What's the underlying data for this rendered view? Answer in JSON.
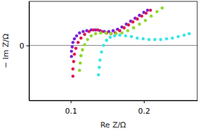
{
  "chart_data": {
    "type": "scatter",
    "x_label": "Re Z/Ω",
    "y_label": "− Im Z/Ω",
    "xlim": [
      0.043,
      0.273
    ],
    "ylim": [
      -0.075,
      0.06
    ],
    "xticks": [
      0.1,
      0.2
    ],
    "yticks": [
      0
    ],
    "grid": "y",
    "marker": "circle",
    "series": [
      {
        "color": "#7b22d8",
        "x": [
          0.101,
          0.101,
          0.102,
          0.103,
          0.105,
          0.108,
          0.112,
          0.117,
          0.122,
          0.128,
          0.134,
          0.14,
          0.146,
          0.152,
          0.158,
          0.164,
          0.17,
          0.176,
          0.182,
          0.188,
          0.194,
          0.2,
          0.205
        ],
        "values": [
          -0.015,
          -0.008,
          -0.002,
          0.004,
          0.009,
          0.013,
          0.017,
          0.019,
          0.02,
          0.021,
          0.021,
          0.02,
          0.019,
          0.019,
          0.02,
          0.022,
          0.025,
          0.029,
          0.033,
          0.037,
          0.041,
          0.045,
          0.048
        ]
      },
      {
        "color": "#e0184c",
        "x": [
          0.103,
          0.103,
          0.104,
          0.105,
          0.107,
          0.11,
          0.114,
          0.119,
          0.125,
          0.131,
          0.137,
          0.143,
          0.149,
          0.155,
          0.161,
          0.167,
          0.173,
          0.179,
          0.185,
          0.191,
          0.197,
          0.203,
          0.209
        ],
        "values": [
          -0.042,
          -0.032,
          -0.022,
          -0.012,
          -0.004,
          0.004,
          0.01,
          0.015,
          0.019,
          0.021,
          0.021,
          0.019,
          0.017,
          0.016,
          0.017,
          0.02,
          0.024,
          0.028,
          0.032,
          0.036,
          0.04,
          0.044,
          0.048
        ]
      },
      {
        "color": "#8fd82c",
        "x": [
          0.112,
          0.113,
          0.114,
          0.116,
          0.119,
          0.123,
          0.128,
          0.134,
          0.141,
          0.148,
          0.155,
          0.162,
          0.17,
          0.178,
          0.186,
          0.194,
          0.202,
          0.21,
          0.218,
          0.225
        ],
        "values": [
          -0.034,
          -0.024,
          -0.014,
          -0.006,
          0.001,
          0.008,
          0.013,
          0.016,
          0.017,
          0.017,
          0.016,
          0.016,
          0.017,
          0.02,
          0.024,
          0.029,
          0.034,
          0.04,
          0.046,
          0.051
        ]
      },
      {
        "color": "#38e6e6",
        "x": [
          0.138,
          0.139,
          0.14,
          0.142,
          0.145,
          0.149,
          0.154,
          0.16,
          0.167,
          0.175,
          0.183,
          0.191,
          0.199,
          0.207,
          0.215,
          0.223,
          0.231,
          0.239,
          0.247,
          0.255,
          0.262
        ],
        "values": [
          -0.04,
          -0.03,
          -0.02,
          -0.009,
          0.0,
          0.007,
          0.011,
          0.013,
          0.014,
          0.013,
          0.012,
          0.01,
          0.009,
          0.008,
          0.008,
          0.008,
          0.009,
          0.01,
          0.012,
          0.014,
          0.016
        ]
      }
    ]
  }
}
